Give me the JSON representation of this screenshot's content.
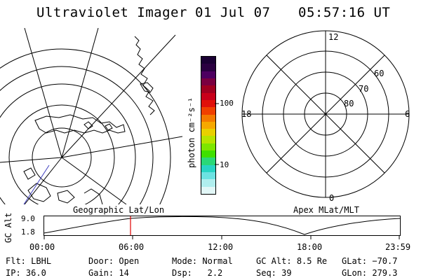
{
  "header": {
    "title": "Ultraviolet Imager",
    "date": "01 Jul 07",
    "time": "05:57:16 UT"
  },
  "colorbar": {
    "unit_label": "photon cm⁻²s⁻¹",
    "ticks": [
      "100",
      "10"
    ],
    "colors": [
      "#1a0033",
      "#2a0040",
      "#4d0060",
      "#7a0040",
      "#a00020",
      "#c8001a",
      "#e0100a",
      "#f04000",
      "#f47a00",
      "#f6a800",
      "#e9d000",
      "#b8e400",
      "#7ee600",
      "#3fe000",
      "#2ad878",
      "#28d4c4",
      "#6ce2e2",
      "#b0eeee",
      "#e2f7f7"
    ]
  },
  "panels": {
    "left_label": "Geographic Lat/Lon",
    "right_label": "Apex MLat/MLT"
  },
  "polar": {
    "lat_labels": [
      "80",
      "70",
      "60"
    ],
    "mlt_labels": [
      "12",
      "18",
      "6",
      "0"
    ]
  },
  "altitude_plot": {
    "ylabel": "GC Alt",
    "y_ticks": [
      "9.0",
      "1.8"
    ],
    "x_ticks": [
      "00:00",
      "06:00",
      "12:00",
      "18:00",
      "23:59"
    ]
  },
  "info": {
    "flt_label": "Flt:",
    "flt_value": "LBHL",
    "ip_label": "IP:",
    "ip_value": "36.0",
    "door_label": "Door:",
    "door_value": "Open",
    "gain_label": "Gain:",
    "gain_value": "14",
    "mode_label": "Mode:",
    "mode_value": "Normal",
    "dsp_label": "Dsp:",
    "dsp_value": "2.2",
    "gcalt_label": "GC Alt:",
    "gcalt_value": "8.5 Re",
    "seq_label": "Seq:",
    "seq_value": "39",
    "glat_label": "GLat:",
    "glat_value": "−70.7",
    "glon_label": "GLon:",
    "glon_value": "279.3"
  }
}
